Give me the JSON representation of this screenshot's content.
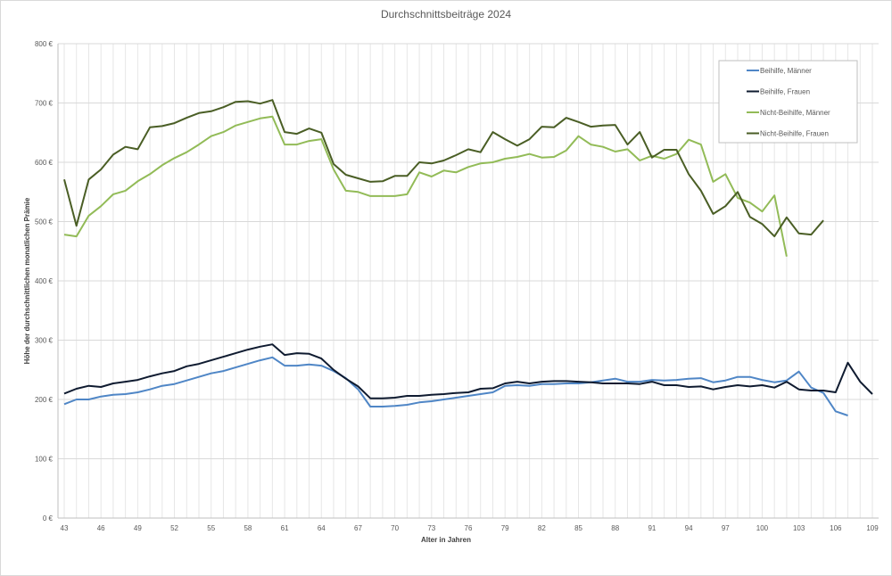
{
  "chart_data": {
    "type": "line",
    "title": "Durchschnittsbeiträge 2024",
    "xlabel": "Alter in Jahren",
    "ylabel": "Höhe der durchschnittlichen monatlichen Prämie",
    "ylim": [
      0,
      800
    ],
    "yticks": [
      "0 €",
      "100 €",
      "200 €",
      "300 €",
      "400 €",
      "500 €",
      "600 €",
      "700 €",
      "800 €"
    ],
    "xlim": [
      43,
      109
    ],
    "xticks": [
      "43",
      "46",
      "49",
      "52",
      "55",
      "58",
      "61",
      "64",
      "67",
      "70",
      "73",
      "76",
      "79",
      "82",
      "85",
      "88",
      "91",
      "94",
      "97",
      "100",
      "103",
      "106",
      "109"
    ],
    "grid": true,
    "legend_position": "top-right",
    "x_start": 43,
    "series": [
      {
        "name": "Beihilfe, Männer",
        "color": "#4f86c6",
        "values": [
          192,
          200,
          200,
          205,
          208,
          209,
          212,
          217,
          223,
          226,
          232,
          238,
          244,
          248,
          254,
          260,
          266,
          271,
          257,
          257,
          259,
          257,
          248,
          236,
          217,
          188,
          188,
          189,
          191,
          195,
          197,
          200,
          203,
          206,
          209,
          212,
          223,
          224,
          223,
          226,
          226,
          227,
          227,
          229,
          232,
          235,
          230,
          230,
          233,
          232,
          233,
          235,
          236,
          229,
          232,
          238,
          238,
          233,
          229,
          232,
          247,
          220,
          211,
          180,
          173
        ]
      },
      {
        "name": "Beihilfe, Frauen",
        "color": "#0f1b30",
        "values": [
          210,
          218,
          223,
          221,
          227,
          230,
          233,
          239,
          244,
          248,
          256,
          260,
          266,
          272,
          278,
          284,
          289,
          293,
          275,
          278,
          277,
          269,
          250,
          235,
          222,
          202,
          202,
          203,
          206,
          206,
          208,
          209,
          211,
          212,
          218,
          219,
          227,
          230,
          227,
          230,
          231,
          231,
          230,
          229,
          227,
          227,
          227,
          226,
          230,
          224,
          224,
          221,
          222,
          217,
          221,
          224,
          222,
          224,
          220,
          230,
          217,
          215,
          215,
          212,
          262,
          230,
          209
        ]
      },
      {
        "name": "Nicht-Beihilfe, Männer",
        "color": "#92bb57",
        "values": [
          478,
          475,
          510,
          526,
          546,
          552,
          568,
          580,
          595,
          607,
          617,
          630,
          644,
          651,
          662,
          668,
          674,
          677,
          630,
          630,
          636,
          639,
          588,
          552,
          550,
          543,
          543,
          543,
          546,
          583,
          576,
          586,
          583,
          592,
          598,
          600,
          606,
          609,
          614,
          608,
          609,
          620,
          644,
          630,
          626,
          618,
          622,
          603,
          611,
          606,
          614,
          638,
          630,
          567,
          580,
          540,
          532,
          517,
          544,
          441
        ]
      },
      {
        "name": "Nicht-Beihilfe, Frauen",
        "color": "#4a5e25",
        "values": [
          571,
          493,
          571,
          588,
          613,
          626,
          622,
          659,
          661,
          666,
          675,
          683,
          686,
          693,
          702,
          703,
          699,
          705,
          651,
          648,
          657,
          650,
          597,
          579,
          573,
          567,
          568,
          577,
          577,
          600,
          598,
          603,
          612,
          622,
          617,
          651,
          639,
          628,
          639,
          660,
          659,
          675,
          668,
          660,
          662,
          663,
          630,
          651,
          608,
          621,
          621,
          580,
          552,
          513,
          526,
          550,
          508,
          496,
          475,
          507,
          480,
          478,
          502
        ]
      }
    ]
  }
}
